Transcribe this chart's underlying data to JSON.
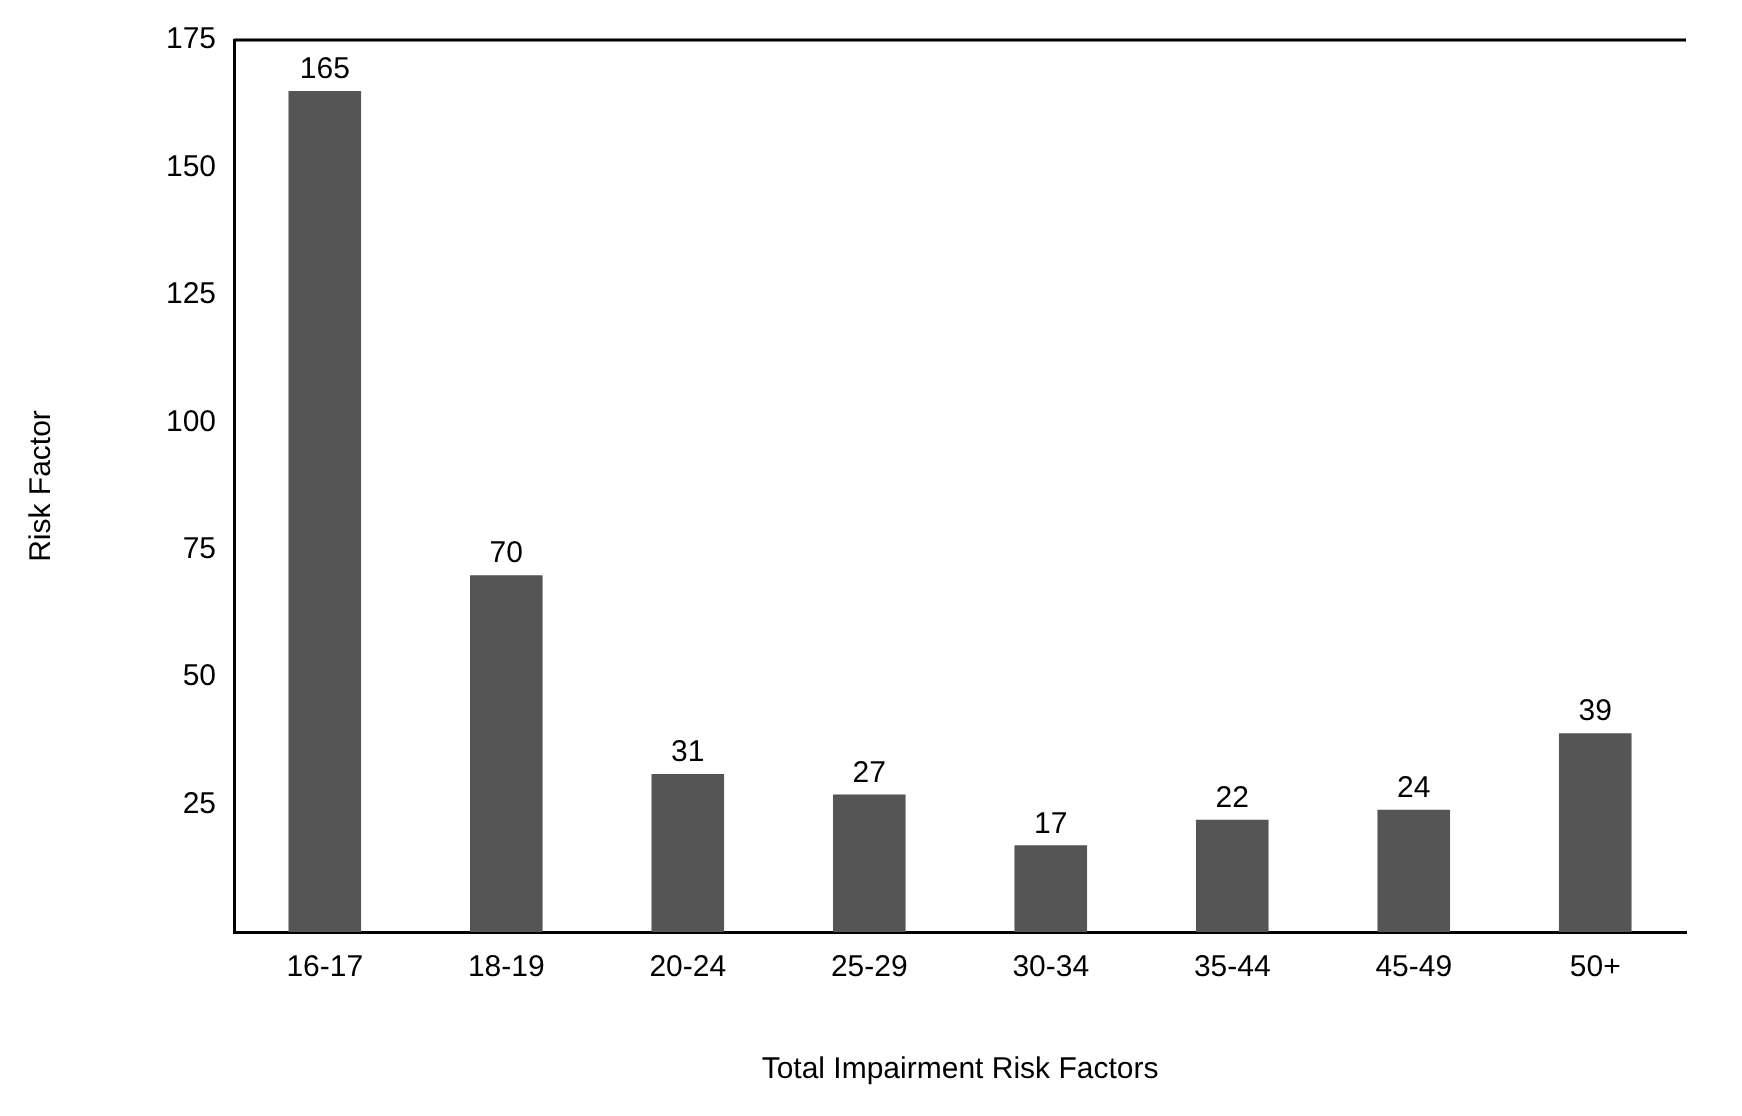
{
  "chart_data": {
    "type": "bar",
    "xlabel": "Total Impairment Risk Factors",
    "ylabel": "Risk Factor",
    "categories": [
      "16-17",
      "18-19",
      "20-24",
      "25-29",
      "30-34",
      "35-44",
      "45-49",
      "50+"
    ],
    "values": [
      165,
      70,
      31,
      27,
      17,
      22,
      24,
      39
    ],
    "color": "#555555",
    "ylim": [
      0,
      175
    ],
    "yticks": [
      25,
      50,
      75,
      100,
      125,
      150,
      175
    ],
    "data_labels": true,
    "grid": false,
    "legend": false
  }
}
